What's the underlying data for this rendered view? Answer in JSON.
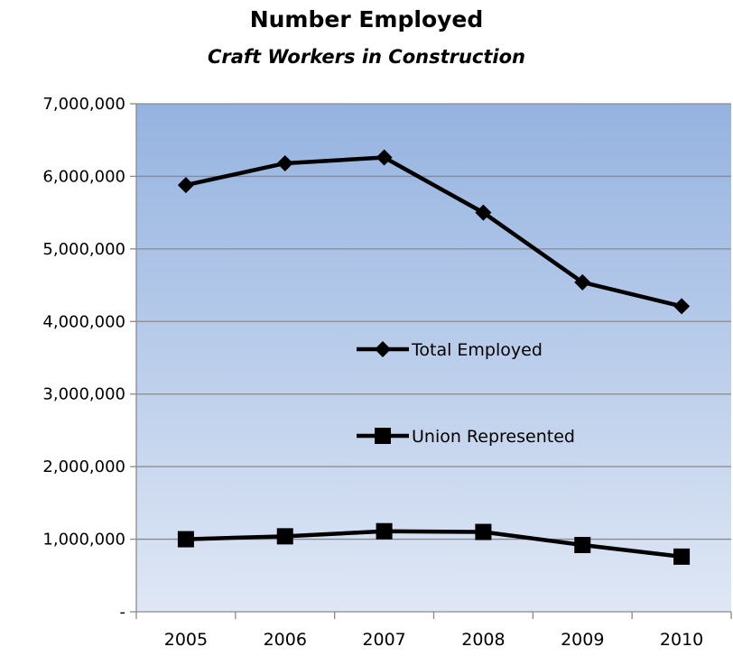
{
  "chart_data": {
    "type": "line",
    "title": "Number Employed",
    "subtitle": "Craft Workers in Construction",
    "xlabel": "",
    "ylabel": "",
    "categories": [
      "2005",
      "2006",
      "2007",
      "2008",
      "2009",
      "2010"
    ],
    "ylim": [
      0,
      7000000
    ],
    "y_ticks": [
      {
        "value": 0,
        "label": "-"
      },
      {
        "value": 1000000,
        "label": "1,000,000"
      },
      {
        "value": 2000000,
        "label": "2,000,000"
      },
      {
        "value": 3000000,
        "label": "3,000,000"
      },
      {
        "value": 4000000,
        "label": "4,000,000"
      },
      {
        "value": 5000000,
        "label": "5,000,000"
      },
      {
        "value": 6000000,
        "label": "6,000,000"
      },
      {
        "value": 7000000,
        "label": "7,000,000"
      }
    ],
    "grid": true,
    "legend_position": "center",
    "series": [
      {
        "name": "Total Employed",
        "marker": "diamond",
        "color": "#000000",
        "values": [
          5880000,
          6180000,
          6260000,
          5500000,
          4540000,
          4210000
        ]
      },
      {
        "name": "Union Represented",
        "marker": "square",
        "color": "#000000",
        "values": [
          1000000,
          1040000,
          1110000,
          1100000,
          920000,
          760000
        ]
      }
    ],
    "plot_background": {
      "top": "#95b3e0",
      "bottom": "#dfe7f5"
    }
  }
}
